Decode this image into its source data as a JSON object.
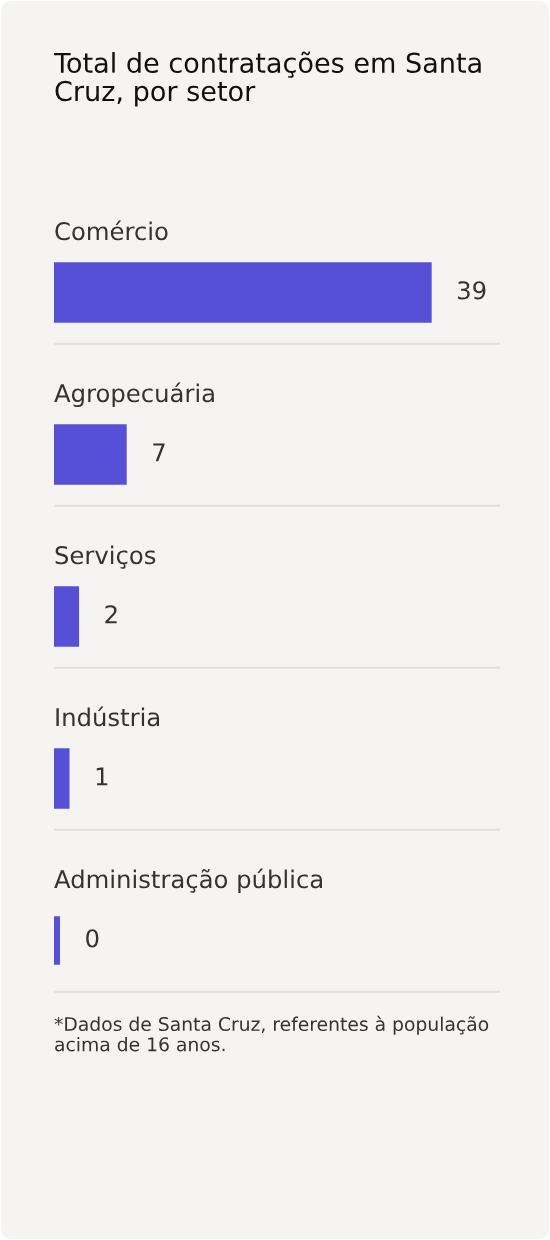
{
  "chart_data": {
    "type": "bar",
    "orientation": "horizontal",
    "title": "Total de contratações em Santa Cruz, por setor",
    "categories": [
      "Comércio",
      "Agropecuária",
      "Serviços",
      "Indústria",
      "Administração pública"
    ],
    "values": [
      39,
      7,
      2,
      1,
      0
    ],
    "color": "#5650d6",
    "data_labels": true,
    "annotations": [
      "*Dados de Santa Cruz, referentes à população acima de 16 anos."
    ]
  }
}
